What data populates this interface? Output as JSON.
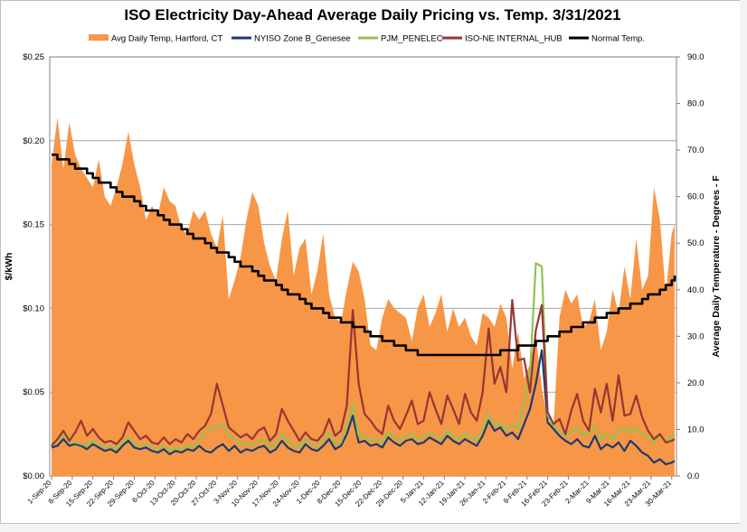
{
  "chart_data": {
    "type": "line",
    "title": "ISO Electricity Day-Ahead Average Daily Pricing vs. Temp. 3/31/2021",
    "ylabel_left": "$/kWh",
    "ylabel_right": "Average Daily Temperature - Degrees - F",
    "ylim_left": [
      0,
      0.25
    ],
    "ylim_right": [
      0,
      90
    ],
    "yticks_left": [
      "$0.00",
      "$0.05",
      "$0.10",
      "$0.15",
      "$0.20",
      "$0.25"
    ],
    "yticks_right": [
      "0.0",
      "10.0",
      "20.0",
      "30.0",
      "40.0",
      "50.0",
      "60.0",
      "70.0",
      "80.0",
      "90.0"
    ],
    "grid": "horizontal major gridlines on",
    "legend_position": "top",
    "x_tick_labels": [
      "1-Sep-20",
      "8-Sep-20",
      "15-Sep-20",
      "22-Sep-20",
      "29-Sep-20",
      "6-Oct-20",
      "13-Oct-20",
      "20-Oct-20",
      "27-Oct-20",
      "3-Nov-20",
      "10-Nov-20",
      "17-Nov-20",
      "24-Nov-20",
      "1-Dec-20",
      "8-Dec-20",
      "15-Dec-20",
      "22-Dec-20",
      "29-Dec-20",
      "5-Jan-21",
      "12-Jan-21",
      "19-Jan-21",
      "26-Jan-21",
      "2-Feb-21",
      "9-Feb-21",
      "16-Feb-21",
      "23-Feb-21",
      "2-Mar-21",
      "9-Mar-21",
      "16-Mar-21",
      "23-Mar-21",
      "30-Mar-21"
    ],
    "series": [
      {
        "name": "Avg Daily Temp, Hartford, CT",
        "axis": "right",
        "kind": "area",
        "color": "#F79646",
        "x": [
          "1-Sep-20",
          "3-Sep-20",
          "5-Sep-20",
          "7-Sep-20",
          "9-Sep-20",
          "11-Sep-20",
          "13-Sep-20",
          "15-Sep-20",
          "17-Sep-20",
          "19-Sep-20",
          "21-Sep-20",
          "23-Sep-20",
          "25-Sep-20",
          "27-Sep-20",
          "29-Sep-20",
          "1-Oct-20",
          "3-Oct-20",
          "5-Oct-20",
          "7-Oct-20",
          "9-Oct-20",
          "11-Oct-20",
          "13-Oct-20",
          "15-Oct-20",
          "17-Oct-20",
          "19-Oct-20",
          "21-Oct-20",
          "23-Oct-20",
          "25-Oct-20",
          "27-Oct-20",
          "29-Oct-20",
          "31-Oct-20",
          "2-Nov-20",
          "4-Nov-20",
          "6-Nov-20",
          "8-Nov-20",
          "10-Nov-20",
          "12-Nov-20",
          "14-Nov-20",
          "16-Nov-20",
          "18-Nov-20",
          "20-Nov-20",
          "22-Nov-20",
          "24-Nov-20",
          "26-Nov-20",
          "28-Nov-20",
          "30-Nov-20",
          "2-Dec-20",
          "4-Dec-20",
          "6-Dec-20",
          "8-Dec-20",
          "10-Dec-20",
          "12-Dec-20",
          "14-Dec-20",
          "16-Dec-20",
          "18-Dec-20",
          "20-Dec-20",
          "22-Dec-20",
          "24-Dec-20",
          "26-Dec-20",
          "28-Dec-20",
          "30-Dec-20",
          "1-Jan-21",
          "3-Jan-21",
          "5-Jan-21",
          "7-Jan-21",
          "9-Jan-21",
          "11-Jan-21",
          "13-Jan-21",
          "15-Jan-21",
          "17-Jan-21",
          "19-Jan-21",
          "21-Jan-21",
          "23-Jan-21",
          "25-Jan-21",
          "27-Jan-21",
          "29-Jan-21",
          "31-Jan-21",
          "2-Feb-21",
          "4-Feb-21",
          "6-Feb-21",
          "8-Feb-21",
          "10-Feb-21",
          "12-Feb-21",
          "14-Feb-21",
          "16-Feb-21",
          "18-Feb-21",
          "20-Feb-21",
          "22-Feb-21",
          "24-Feb-21",
          "26-Feb-21",
          "28-Feb-21",
          "2-Mar-21",
          "4-Mar-21",
          "6-Mar-21",
          "8-Mar-21",
          "10-Mar-21",
          "12-Mar-21",
          "14-Mar-21",
          "16-Mar-21",
          "18-Mar-21",
          "20-Mar-21",
          "22-Mar-21",
          "24-Mar-21",
          "26-Mar-21",
          "28-Mar-21",
          "30-Mar-21",
          "31-Mar-21"
        ],
        "values": [
          67,
          77,
          66,
          76,
          69,
          66,
          64,
          62,
          68,
          60,
          58,
          62,
          67,
          74,
          67,
          62,
          55,
          58,
          56,
          62,
          59,
          58,
          53,
          52,
          57,
          55,
          57,
          52,
          49,
          56,
          38,
          42,
          47,
          55,
          61,
          58,
          50,
          45,
          42,
          51,
          57,
          43,
          49,
          51,
          39,
          44,
          52,
          39,
          34,
          33,
          40,
          46,
          44,
          38,
          28,
          27,
          34,
          38,
          36,
          35,
          34,
          29,
          36,
          39,
          32,
          35,
          39,
          31,
          36,
          32,
          34,
          30,
          28,
          35,
          34,
          32,
          37,
          34,
          23,
          31,
          21,
          24,
          30,
          19,
          12,
          11,
          34,
          40,
          37,
          39,
          32,
          33,
          38,
          27,
          31,
          40,
          35,
          45,
          38,
          51,
          40,
          43,
          62,
          55,
          39,
          52,
          54
        ]
      },
      {
        "name": "NYISO Zone B_Genesee",
        "axis": "left",
        "color": "#1F3A6F",
        "values": [
          0.017,
          0.018,
          0.022,
          0.018,
          0.019,
          0.018,
          0.016,
          0.019,
          0.017,
          0.015,
          0.016,
          0.014,
          0.018,
          0.021,
          0.017,
          0.016,
          0.017,
          0.015,
          0.014,
          0.016,
          0.013,
          0.015,
          0.014,
          0.016,
          0.015,
          0.018,
          0.015,
          0.014,
          0.017,
          0.019,
          0.015,
          0.018,
          0.014,
          0.016,
          0.015,
          0.017,
          0.018,
          0.014,
          0.016,
          0.021,
          0.017,
          0.015,
          0.014,
          0.019,
          0.016,
          0.015,
          0.018,
          0.022,
          0.016,
          0.018,
          0.025,
          0.036,
          0.02,
          0.021,
          0.018,
          0.019,
          0.017,
          0.023,
          0.02,
          0.018,
          0.021,
          0.022,
          0.019,
          0.02,
          0.023,
          0.021,
          0.019,
          0.024,
          0.021,
          0.019,
          0.022,
          0.02,
          0.018,
          0.024,
          0.033,
          0.027,
          0.029,
          0.024,
          0.026,
          0.022,
          0.031,
          0.04,
          0.055,
          0.075,
          0.032,
          0.028,
          0.024,
          0.021,
          0.019,
          0.022,
          0.018,
          0.017,
          0.024,
          0.016,
          0.019,
          0.017,
          0.02,
          0.015,
          0.021,
          0.018,
          0.014,
          0.012,
          0.008,
          0.01,
          0.007,
          0.008,
          0.009
        ]
      },
      {
        "name": "PJM_PENELEC",
        "axis": "left",
        "color": "#92C353",
        "values": [
          0.02,
          0.021,
          0.024,
          0.021,
          0.02,
          0.019,
          0.018,
          0.021,
          0.019,
          0.017,
          0.018,
          0.016,
          0.02,
          0.023,
          0.019,
          0.018,
          0.019,
          0.017,
          0.016,
          0.018,
          0.015,
          0.017,
          0.016,
          0.018,
          0.017,
          0.022,
          0.026,
          0.028,
          0.029,
          0.031,
          0.024,
          0.022,
          0.019,
          0.02,
          0.018,
          0.021,
          0.022,
          0.017,
          0.02,
          0.025,
          0.021,
          0.018,
          0.017,
          0.022,
          0.019,
          0.018,
          0.021,
          0.026,
          0.019,
          0.02,
          0.03,
          0.043,
          0.024,
          0.024,
          0.021,
          0.022,
          0.02,
          0.026,
          0.023,
          0.021,
          0.024,
          0.025,
          0.022,
          0.023,
          0.026,
          0.024,
          0.022,
          0.027,
          0.024,
          0.022,
          0.026,
          0.023,
          0.021,
          0.028,
          0.037,
          0.03,
          0.032,
          0.027,
          0.031,
          0.028,
          0.045,
          0.06,
          0.127,
          0.125,
          0.036,
          0.03,
          0.027,
          0.024,
          0.026,
          0.029,
          0.024,
          0.026,
          0.03,
          0.022,
          0.025,
          0.022,
          0.027,
          0.028,
          0.026,
          0.029,
          0.025,
          0.023,
          0.02,
          0.025,
          0.021,
          0.024,
          0.025
        ]
      },
      {
        "name": "ISO-NE INTERNAL_HUB",
        "axis": "left",
        "color": "#963634",
        "values": [
          0.018,
          0.022,
          0.027,
          0.021,
          0.026,
          0.033,
          0.024,
          0.028,
          0.023,
          0.02,
          0.021,
          0.019,
          0.023,
          0.032,
          0.027,
          0.022,
          0.024,
          0.02,
          0.019,
          0.023,
          0.019,
          0.022,
          0.02,
          0.025,
          0.022,
          0.027,
          0.03,
          0.037,
          0.055,
          0.042,
          0.029,
          0.026,
          0.023,
          0.025,
          0.022,
          0.027,
          0.029,
          0.021,
          0.025,
          0.04,
          0.033,
          0.027,
          0.021,
          0.026,
          0.022,
          0.021,
          0.025,
          0.034,
          0.024,
          0.027,
          0.042,
          0.099,
          0.055,
          0.037,
          0.033,
          0.028,
          0.025,
          0.042,
          0.033,
          0.028,
          0.036,
          0.045,
          0.031,
          0.033,
          0.05,
          0.04,
          0.031,
          0.048,
          0.04,
          0.031,
          0.049,
          0.038,
          0.033,
          0.05,
          0.088,
          0.055,
          0.065,
          0.05,
          0.105,
          0.069,
          0.07,
          0.05,
          0.087,
          0.102,
          0.038,
          0.031,
          0.034,
          0.025,
          0.039,
          0.049,
          0.033,
          0.027,
          0.052,
          0.038,
          0.055,
          0.033,
          0.06,
          0.036,
          0.037,
          0.048,
          0.035,
          0.027,
          0.022,
          0.025,
          0.02,
          0.021,
          0.022
        ]
      },
      {
        "name": "Normal Temp.",
        "axis": "right",
        "color": "#000000",
        "values": [
          69,
          68,
          68,
          67,
          66,
          66,
          65,
          64,
          63,
          63,
          62,
          61,
          60,
          60,
          59,
          58,
          57,
          57,
          56,
          55,
          54,
          54,
          53,
          52,
          51,
          51,
          50,
          49,
          48,
          48,
          47,
          46,
          45,
          45,
          44,
          43,
          42,
          42,
          41,
          40,
          39,
          39,
          38,
          37,
          36,
          36,
          35,
          34,
          34,
          33,
          33,
          32,
          32,
          31,
          30,
          30,
          29,
          29,
          28,
          28,
          27,
          27,
          26,
          26,
          26,
          26,
          26,
          26,
          26,
          26,
          26,
          26,
          26,
          26,
          26,
          26,
          27,
          27,
          27,
          28,
          28,
          28,
          29,
          29,
          30,
          30,
          31,
          31,
          32,
          32,
          33,
          33,
          34,
          34,
          35,
          35,
          36,
          36,
          37,
          37,
          38,
          39,
          39,
          40,
          41,
          42,
          43
        ]
      }
    ]
  }
}
